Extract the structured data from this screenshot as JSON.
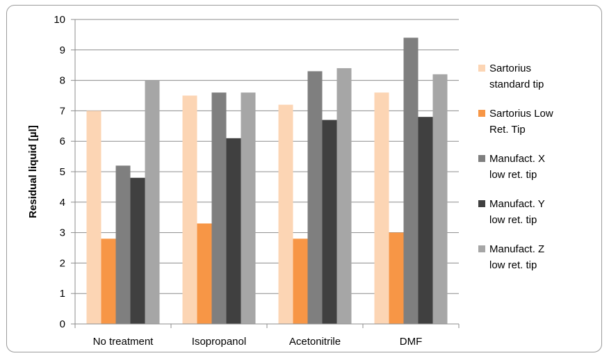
{
  "chart_data": {
    "type": "bar",
    "title": "",
    "xlabel": "",
    "ylabel": "Residual liquid [µl]",
    "ylim": [
      0,
      10
    ],
    "yticks": [
      "0",
      "1",
      "2",
      "3",
      "4",
      "5",
      "6",
      "7",
      "8",
      "9",
      "10"
    ],
    "grid": true,
    "legend_position": "right",
    "categories": [
      "No treatment",
      "Isopropanol",
      "Acetonitrile",
      "DMF"
    ],
    "series": [
      {
        "name": "Sartorius standard tip",
        "name_lines": [
          "Sartorius",
          "standard tip"
        ],
        "color": "#fcd5b4",
        "values": [
          7.0,
          7.5,
          7.2,
          7.6
        ]
      },
      {
        "name": "Sartorius Low Ret. Tip",
        "name_lines": [
          "Sartorius Low",
          "Ret. Tip"
        ],
        "color": "#f79646",
        "values": [
          2.8,
          3.3,
          2.8,
          3.0
        ]
      },
      {
        "name": "Manufact. X low ret. tip",
        "name_lines": [
          "Manufact. X",
          "low ret. tip"
        ],
        "color": "#7f7f7f",
        "values": [
          5.2,
          7.6,
          8.3,
          9.4
        ]
      },
      {
        "name": "Manufact. Y low ret. tip",
        "name_lines": [
          "Manufact. Y",
          "low ret. tip"
        ],
        "color": "#404040",
        "values": [
          4.8,
          6.1,
          6.7,
          6.8
        ]
      },
      {
        "name": "Manufact. Z low ret. tip",
        "name_lines": [
          "Manufact. Z",
          "low ret. tip"
        ],
        "color": "#a6a6a6",
        "values": [
          8.0,
          7.6,
          8.4,
          8.2
        ]
      }
    ]
  }
}
